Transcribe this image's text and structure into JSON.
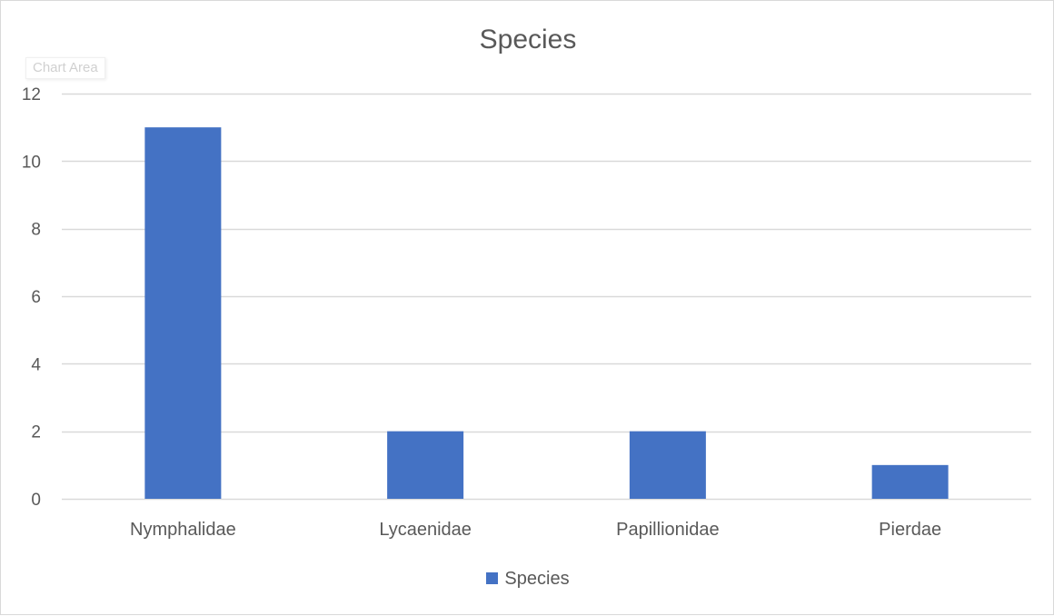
{
  "colors": {
    "bar": "#4472C4",
    "grid": "#d9d9d9",
    "text": "#595959"
  },
  "tooltip": {
    "label": "Chart Area"
  },
  "chart_data": {
    "type": "bar",
    "title": "Species",
    "xlabel": "",
    "ylabel": "",
    "categories": [
      "Nymphalidae",
      "Lycaenidae",
      "Papillionidae",
      "Pierdae"
    ],
    "series": [
      {
        "name": "Species",
        "values": [
          11,
          2,
          2,
          1
        ]
      }
    ],
    "ylim": [
      0,
      12
    ],
    "yticks": [
      0,
      2,
      4,
      6,
      8,
      10,
      12
    ],
    "grid": true,
    "legend_position": "bottom"
  }
}
